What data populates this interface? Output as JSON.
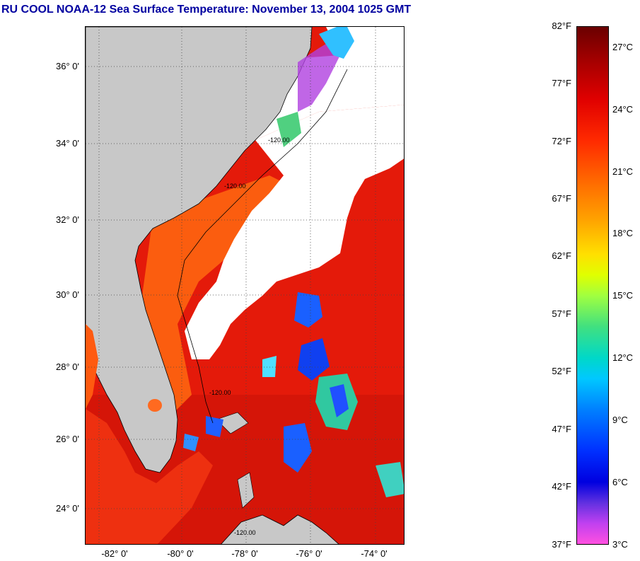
{
  "title": "RU COOL  NOAA-12  Sea Surface Temperature:  November 13, 2004 1025 GMT",
  "map": {
    "lat_labels": [
      "36° 0'",
      "34° 0'",
      "32° 0'",
      "30° 0'",
      "28° 0'",
      "26° 0'",
      "24° 0'"
    ],
    "lon_labels": [
      "-82° 0'",
      "-80° 0'",
      "-78° 0'",
      "-76° 0'",
      "-74° 0'"
    ],
    "contour_labels": [
      "-120.00",
      "-120.00",
      "-120.00",
      "-120.00"
    ],
    "colors": {
      "land": "#c8c8c8",
      "cloud": "#ffffff",
      "warm_water": "#e81808",
      "cool_water": "#ff5010",
      "cold_patch": "#1050ff"
    }
  },
  "colorbar": {
    "fahrenheit_labels": [
      "82°F",
      "77°F",
      "72°F",
      "67°F",
      "62°F",
      "57°F",
      "52°F",
      "47°F",
      "42°F",
      "37°F"
    ],
    "celsius_labels": [
      "27°C",
      "24°C",
      "21°C",
      "18°C",
      "15°C",
      "12°C",
      "9°C",
      "6°C",
      "3°C"
    ]
  }
}
